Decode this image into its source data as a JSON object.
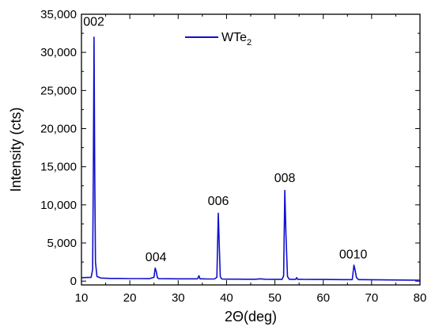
{
  "chart_data": {
    "type": "line",
    "xlabel": "2Θ(deg)",
    "ylabel": "Intensity (cts)",
    "xlim": [
      10,
      80
    ],
    "ylim": [
      -500,
      35000
    ],
    "xticks": [
      10,
      20,
      30,
      40,
      50,
      60,
      70,
      80
    ],
    "yticks": [
      0,
      5000,
      10000,
      15000,
      20000,
      25000,
      30000,
      35000
    ],
    "ytick_labels": [
      "0",
      "5,000",
      "10,000",
      "15,000",
      "20,000",
      "25,000",
      "30,000",
      "35,000"
    ],
    "grid": false,
    "legend": {
      "position": "top-center",
      "label_main": "WTe",
      "label_sub": "2"
    },
    "series": [
      {
        "name": "WTe2",
        "color": "#1010cc",
        "x": [
          10,
          12,
          12.3,
          12.45,
          12.6,
          12.75,
          12.9,
          13.2,
          14,
          16,
          18,
          20,
          22,
          24,
          25.0,
          25.25,
          25.45,
          25.7,
          26,
          28,
          30,
          32,
          34,
          34.3,
          34.5,
          35,
          36,
          37.5,
          38.0,
          38.3,
          38.5,
          38.7,
          39.0,
          40,
          42,
          44,
          46,
          47,
          48,
          50,
          51.5,
          51.8,
          52.05,
          52.3,
          52.6,
          53,
          54.3,
          54.5,
          54.7,
          56,
          58,
          60,
          62,
          64,
          66.0,
          66.35,
          66.6,
          66.85,
          67.3,
          68,
          70,
          72,
          74,
          76,
          78,
          80
        ],
        "y": [
          450,
          500,
          1500,
          14000,
          32000,
          14000,
          2500,
          600,
          400,
          350,
          350,
          330,
          330,
          320,
          500,
          1700,
          1300,
          450,
          320,
          310,
          300,
          300,
          300,
          700,
          300,
          300,
          280,
          280,
          500,
          8900,
          4500,
          600,
          280,
          260,
          260,
          250,
          250,
          300,
          250,
          240,
          240,
          700,
          11900,
          6000,
          600,
          240,
          240,
          450,
          240,
          230,
          220,
          220,
          210,
          200,
          200,
          2100,
          1400,
          500,
          200,
          200,
          180,
          160,
          150,
          140,
          130,
          120
        ]
      }
    ],
    "annotations": [
      {
        "text": "002",
        "x": 12.55,
        "y": 33500
      },
      {
        "text": "004",
        "x": 25.4,
        "y": 2600
      },
      {
        "text": "006",
        "x": 38.3,
        "y": 10000
      },
      {
        "text": "008",
        "x": 52.05,
        "y": 13000
      },
      {
        "text": "0010",
        "x": 66.2,
        "y": 3000
      }
    ]
  }
}
